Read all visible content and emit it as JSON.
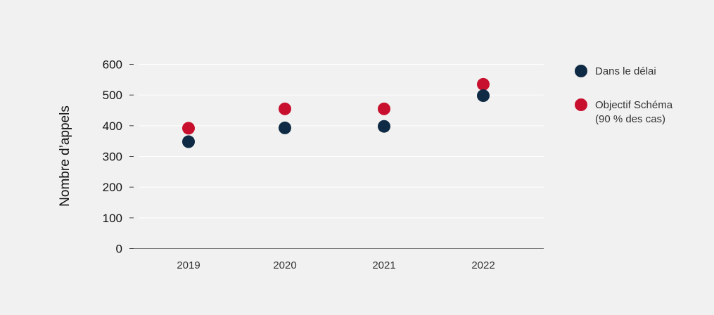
{
  "chart_data": {
    "type": "scatter",
    "ylabel": "Nombre d’appels",
    "xlabel": "",
    "title": "",
    "categories": [
      "2019",
      "2020",
      "2021",
      "2022"
    ],
    "ylim": [
      0,
      600
    ],
    "yticks": [
      0,
      100,
      200,
      300,
      400,
      500,
      600
    ],
    "grid": true,
    "legend_position": "right",
    "series": [
      {
        "name": "Dans le délai",
        "color": "#0f2a44",
        "values": [
          348,
          393,
          398,
          498
        ]
      },
      {
        "name_lines": [
          "Objectif Schéma",
          "(90 % des cas)"
        ],
        "color": "#c8102e",
        "values": [
          392,
          455,
          455,
          535
        ]
      }
    ]
  }
}
